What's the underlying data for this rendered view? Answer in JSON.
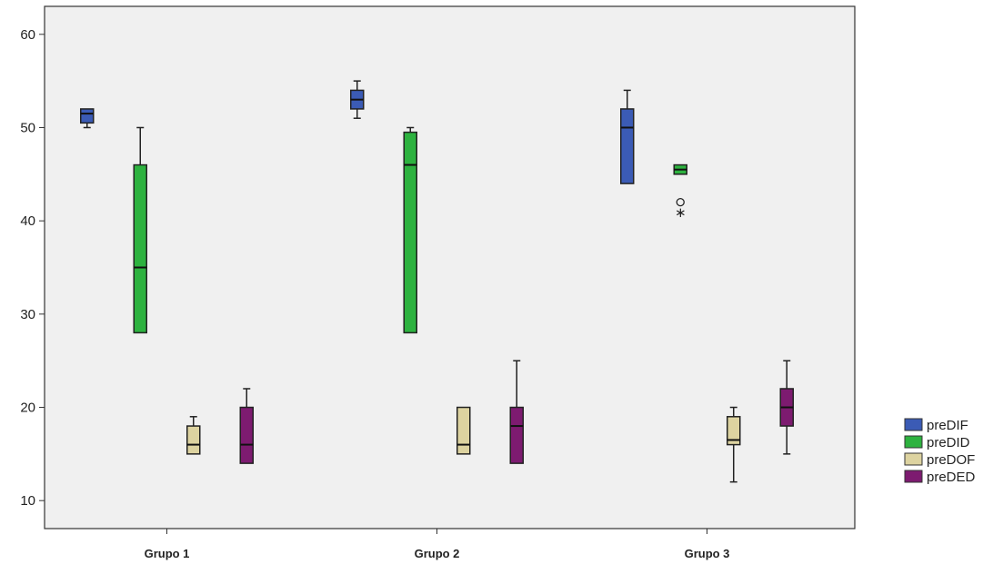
{
  "chart_data": {
    "type": "boxplot",
    "title": "",
    "xlabel": "",
    "ylabel": "",
    "ylim": [
      7,
      63
    ],
    "yticks": [
      10,
      20,
      30,
      40,
      50,
      60
    ],
    "categories": [
      "Grupo 1",
      "Grupo 2",
      "Grupo 3"
    ],
    "legend_position": "right",
    "grid": false,
    "series": [
      {
        "name": "preDIF",
        "color": "#3b5bb5",
        "boxes": [
          {
            "min": 50,
            "q1": 50.5,
            "median": 51.5,
            "q3": 52,
            "max": 52
          },
          {
            "min": 51,
            "q1": 52,
            "median": 53,
            "q3": 54,
            "max": 55
          },
          {
            "min": 44,
            "q1": 44,
            "median": 50,
            "q3": 52,
            "max": 54
          }
        ]
      },
      {
        "name": "preDID",
        "color": "#2db23f",
        "boxes": [
          {
            "min": 28,
            "q1": 28,
            "median": 35,
            "q3": 46,
            "max": 50
          },
          {
            "min": 28,
            "q1": 28,
            "median": 46,
            "q3": 49.5,
            "max": 50
          },
          {
            "min": 45,
            "q1": 45,
            "median": 45.5,
            "q3": 46,
            "max": 46,
            "outliers": [
              {
                "value": 42,
                "marker": "circle"
              },
              {
                "value": 41,
                "marker": "star"
              }
            ]
          }
        ]
      },
      {
        "name": "preDOF",
        "color": "#ddd3a0",
        "boxes": [
          {
            "min": 15,
            "q1": 15,
            "median": 16,
            "q3": 18,
            "max": 19
          },
          {
            "min": 15,
            "q1": 15,
            "median": 16,
            "q3": 20,
            "max": 20
          },
          {
            "min": 12,
            "q1": 16,
            "median": 16.5,
            "q3": 19,
            "max": 20
          }
        ]
      },
      {
        "name": "preDED",
        "color": "#7d1b70",
        "boxes": [
          {
            "min": 14,
            "q1": 14,
            "median": 16,
            "q3": 20,
            "max": 22
          },
          {
            "min": 14,
            "q1": 14,
            "median": 18,
            "q3": 20,
            "max": 25
          },
          {
            "min": 15,
            "q1": 18,
            "median": 20,
            "q3": 22,
            "max": 25
          }
        ]
      }
    ]
  }
}
